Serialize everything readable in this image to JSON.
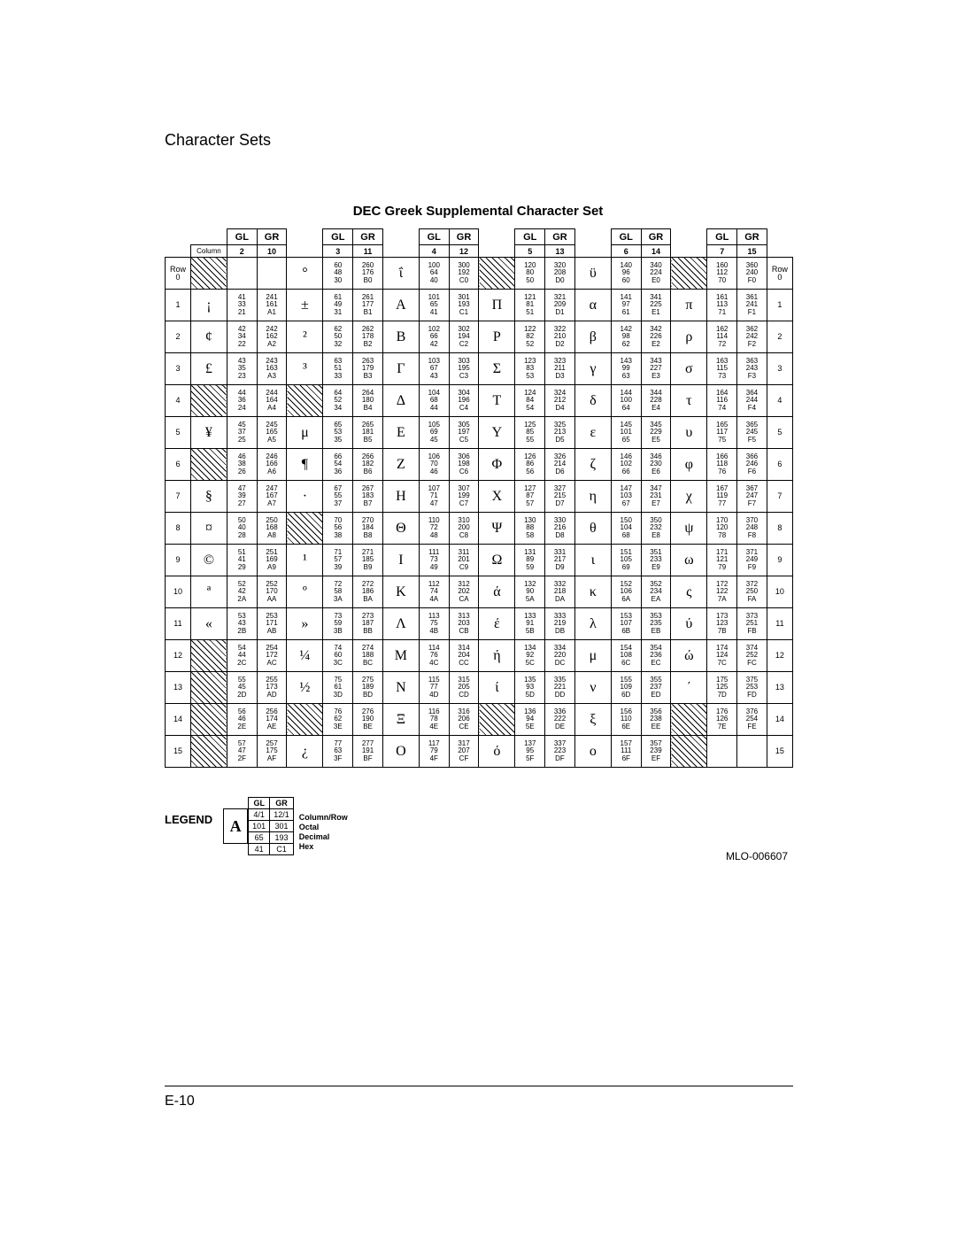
{
  "page": {
    "header": "Character Sets",
    "chart_title": "DEC Greek Supplemental Character Set",
    "page_number": "E-10",
    "mlo": "MLO-006607"
  },
  "headers": {
    "gl": "GL",
    "gr": "GR",
    "column_label": "Column",
    "row_label": "Row"
  },
  "column_numbers": [
    "2",
    "10",
    "3",
    "11",
    "4",
    "12",
    "5",
    "13",
    "6",
    "14",
    "7",
    "15"
  ],
  "legend": {
    "title": "LEGEND",
    "glyph": "A",
    "gl": "GL",
    "gr": "GR",
    "colrow_gl": "4/1",
    "colrow_gr": "12/1",
    "oct_gl": "101",
    "oct_gr": "301",
    "dec_gl": "65",
    "dec_gr": "193",
    "hex_gl": "41",
    "hex_gr": "C1",
    "desc_colrow": "Column/Row",
    "desc_octal": "Octal",
    "desc_decimal": "Decimal",
    "desc_hex": "Hex"
  },
  "rows": [
    {
      "r": "0",
      "cells": [
        {
          "g": "",
          "h": true
        },
        {
          "gl": "",
          "gr": ""
        },
        {
          "g": "°"
        },
        {
          "gl": "60\n48\n30",
          "gr": "260\n176\nB0"
        },
        {
          "g": "ΐ"
        },
        {
          "gl": "100\n64\n40",
          "gr": "300\n192\nC0"
        },
        {
          "g": "",
          "h": true
        },
        {
          "gl": "120\n80\n50",
          "gr": "320\n208\nD0"
        },
        {
          "g": "ϋ"
        },
        {
          "gl": "140\n96\n60",
          "gr": "340\n224\nE0"
        },
        {
          "g": "",
          "h": true
        },
        {
          "gl": "160\n112\n70",
          "gr": "360\n240\nF0"
        }
      ]
    },
    {
      "r": "1",
      "cells": [
        {
          "g": "¡"
        },
        {
          "gl": "41\n33\n21",
          "gr": "241\n161\nA1"
        },
        {
          "g": "±"
        },
        {
          "gl": "61\n49\n31",
          "gr": "261\n177\nB1"
        },
        {
          "g": "Α"
        },
        {
          "gl": "101\n65\n41",
          "gr": "301\n193\nC1"
        },
        {
          "g": "Π"
        },
        {
          "gl": "121\n81\n51",
          "gr": "321\n209\nD1"
        },
        {
          "g": "α"
        },
        {
          "gl": "141\n97\n61",
          "gr": "341\n225\nE1"
        },
        {
          "g": "π"
        },
        {
          "gl": "161\n113\n71",
          "gr": "361\n241\nF1"
        }
      ]
    },
    {
      "r": "2",
      "cells": [
        {
          "g": "¢"
        },
        {
          "gl": "42\n34\n22",
          "gr": "242\n162\nA2"
        },
        {
          "g": "²"
        },
        {
          "gl": "62\n50\n32",
          "gr": "262\n178\nB2"
        },
        {
          "g": "Β"
        },
        {
          "gl": "102\n66\n42",
          "gr": "302\n194\nC2"
        },
        {
          "g": "Ρ"
        },
        {
          "gl": "122\n82\n52",
          "gr": "322\n210\nD2"
        },
        {
          "g": "β"
        },
        {
          "gl": "142\n98\n62",
          "gr": "342\n226\nE2"
        },
        {
          "g": "ρ"
        },
        {
          "gl": "162\n114\n72",
          "gr": "362\n242\nF2"
        }
      ]
    },
    {
      "r": "3",
      "cells": [
        {
          "g": "£"
        },
        {
          "gl": "43\n35\n23",
          "gr": "243\n163\nA3"
        },
        {
          "g": "³"
        },
        {
          "gl": "63\n51\n33",
          "gr": "263\n179\nB3"
        },
        {
          "g": "Γ"
        },
        {
          "gl": "103\n67\n43",
          "gr": "303\n195\nC3"
        },
        {
          "g": "Σ"
        },
        {
          "gl": "123\n83\n53",
          "gr": "323\n211\nD3"
        },
        {
          "g": "γ"
        },
        {
          "gl": "143\n99\n63",
          "gr": "343\n227\nE3"
        },
        {
          "g": "σ"
        },
        {
          "gl": "163\n115\n73",
          "gr": "363\n243\nF3"
        }
      ]
    },
    {
      "r": "4",
      "cells": [
        {
          "g": "",
          "h": true
        },
        {
          "gl": "44\n36\n24",
          "gr": "244\n164\nA4"
        },
        {
          "g": "",
          "h": true
        },
        {
          "gl": "64\n52\n34",
          "gr": "264\n180\nB4"
        },
        {
          "g": "Δ"
        },
        {
          "gl": "104\n68\n44",
          "gr": "304\n196\nC4"
        },
        {
          "g": "Τ"
        },
        {
          "gl": "124\n84\n54",
          "gr": "324\n212\nD4"
        },
        {
          "g": "δ"
        },
        {
          "gl": "144\n100\n64",
          "gr": "344\n228\nE4"
        },
        {
          "g": "τ"
        },
        {
          "gl": "164\n116\n74",
          "gr": "364\n244\nF4"
        }
      ]
    },
    {
      "r": "5",
      "cells": [
        {
          "g": "¥"
        },
        {
          "gl": "45\n37\n25",
          "gr": "245\n165\nA5"
        },
        {
          "g": "μ"
        },
        {
          "gl": "65\n53\n35",
          "gr": "265\n181\nB5"
        },
        {
          "g": "Ε"
        },
        {
          "gl": "105\n69\n45",
          "gr": "305\n197\nC5"
        },
        {
          "g": "Υ"
        },
        {
          "gl": "125\n85\n55",
          "gr": "325\n213\nD5"
        },
        {
          "g": "ε"
        },
        {
          "gl": "145\n101\n65",
          "gr": "345\n229\nE5"
        },
        {
          "g": "υ"
        },
        {
          "gl": "165\n117\n75",
          "gr": "365\n245\nF5"
        }
      ]
    },
    {
      "r": "6",
      "cells": [
        {
          "g": "",
          "h": true
        },
        {
          "gl": "46\n38\n26",
          "gr": "246\n166\nA6"
        },
        {
          "g": "¶"
        },
        {
          "gl": "66\n54\n36",
          "gr": "266\n182\nB6"
        },
        {
          "g": "Ζ"
        },
        {
          "gl": "106\n70\n46",
          "gr": "306\n198\nC6"
        },
        {
          "g": "Φ"
        },
        {
          "gl": "126\n86\n56",
          "gr": "326\n214\nD6"
        },
        {
          "g": "ζ"
        },
        {
          "gl": "146\n102\n66",
          "gr": "346\n230\nE6"
        },
        {
          "g": "φ"
        },
        {
          "gl": "166\n118\n76",
          "gr": "366\n246\nF6"
        }
      ]
    },
    {
      "r": "7",
      "cells": [
        {
          "g": "§"
        },
        {
          "gl": "47\n39\n27",
          "gr": "247\n167\nA7"
        },
        {
          "g": "·"
        },
        {
          "gl": "67\n55\n37",
          "gr": "267\n183\nB7"
        },
        {
          "g": "Η"
        },
        {
          "gl": "107\n71\n47",
          "gr": "307\n199\nC7"
        },
        {
          "g": "Χ"
        },
        {
          "gl": "127\n87\n57",
          "gr": "327\n215\nD7"
        },
        {
          "g": "η"
        },
        {
          "gl": "147\n103\n67",
          "gr": "347\n231\nE7"
        },
        {
          "g": "χ"
        },
        {
          "gl": "167\n119\n77",
          "gr": "367\n247\nF7"
        }
      ]
    },
    {
      "r": "8",
      "cells": [
        {
          "g": "¤"
        },
        {
          "gl": "50\n40\n28",
          "gr": "250\n168\nA8"
        },
        {
          "g": "",
          "h": true
        },
        {
          "gl": "70\n56\n38",
          "gr": "270\n184\nB8"
        },
        {
          "g": "Θ"
        },
        {
          "gl": "110\n72\n48",
          "gr": "310\n200\nC8"
        },
        {
          "g": "Ψ"
        },
        {
          "gl": "130\n88\n58",
          "gr": "330\n216\nD8"
        },
        {
          "g": "θ"
        },
        {
          "gl": "150\n104\n68",
          "gr": "350\n232\nE8"
        },
        {
          "g": "ψ"
        },
        {
          "gl": "170\n120\n78",
          "gr": "370\n248\nF8"
        }
      ]
    },
    {
      "r": "9",
      "cells": [
        {
          "g": "©"
        },
        {
          "gl": "51\n41\n29",
          "gr": "251\n169\nA9"
        },
        {
          "g": "¹"
        },
        {
          "gl": "71\n57\n39",
          "gr": "271\n185\nB9"
        },
        {
          "g": "Ι"
        },
        {
          "gl": "111\n73\n49",
          "gr": "311\n201\nC9"
        },
        {
          "g": "Ω"
        },
        {
          "gl": "131\n89\n59",
          "gr": "331\n217\nD9"
        },
        {
          "g": "ι"
        },
        {
          "gl": "151\n105\n69",
          "gr": "351\n233\nE9"
        },
        {
          "g": "ω"
        },
        {
          "gl": "171\n121\n79",
          "gr": "371\n249\nF9"
        }
      ]
    },
    {
      "r": "10",
      "cells": [
        {
          "g": "ª"
        },
        {
          "gl": "52\n42\n2A",
          "gr": "252\n170\nAA"
        },
        {
          "g": "º"
        },
        {
          "gl": "72\n58\n3A",
          "gr": "272\n186\nBA"
        },
        {
          "g": "Κ"
        },
        {
          "gl": "112\n74\n4A",
          "gr": "312\n202\nCA"
        },
        {
          "g": "ά"
        },
        {
          "gl": "132\n90\n5A",
          "gr": "332\n218\nDA"
        },
        {
          "g": "κ"
        },
        {
          "gl": "152\n106\n6A",
          "gr": "352\n234\nEA"
        },
        {
          "g": "ς"
        },
        {
          "gl": "172\n122\n7A",
          "gr": "372\n250\nFA"
        }
      ]
    },
    {
      "r": "11",
      "cells": [
        {
          "g": "«"
        },
        {
          "gl": "53\n43\n2B",
          "gr": "253\n171\nAB"
        },
        {
          "g": "»"
        },
        {
          "gl": "73\n59\n3B",
          "gr": "273\n187\nBB"
        },
        {
          "g": "Λ"
        },
        {
          "gl": "113\n75\n4B",
          "gr": "313\n203\nCB"
        },
        {
          "g": "έ"
        },
        {
          "gl": "133\n91\n5B",
          "gr": "333\n219\nDB"
        },
        {
          "g": "λ"
        },
        {
          "gl": "153\n107\n6B",
          "gr": "353\n235\nEB"
        },
        {
          "g": "ύ"
        },
        {
          "gl": "173\n123\n7B",
          "gr": "373\n251\nFB"
        }
      ]
    },
    {
      "r": "12",
      "cells": [
        {
          "g": "",
          "h": true
        },
        {
          "gl": "54\n44\n2C",
          "gr": "254\n172\nAC"
        },
        {
          "g": "¼"
        },
        {
          "gl": "74\n60\n3C",
          "gr": "274\n188\nBC"
        },
        {
          "g": "Μ"
        },
        {
          "gl": "114\n76\n4C",
          "gr": "314\n204\nCC"
        },
        {
          "g": "ή"
        },
        {
          "gl": "134\n92\n5C",
          "gr": "334\n220\nDC"
        },
        {
          "g": "μ"
        },
        {
          "gl": "154\n108\n6C",
          "gr": "354\n236\nEC"
        },
        {
          "g": "ώ"
        },
        {
          "gl": "174\n124\n7C",
          "gr": "374\n252\nFC"
        }
      ]
    },
    {
      "r": "13",
      "cells": [
        {
          "g": "",
          "h": true
        },
        {
          "gl": "55\n45\n2D",
          "gr": "255\n173\nAD"
        },
        {
          "g": "½"
        },
        {
          "gl": "75\n61\n3D",
          "gr": "275\n189\nBD"
        },
        {
          "g": "Ν"
        },
        {
          "gl": "115\n77\n4D",
          "gr": "315\n205\nCD"
        },
        {
          "g": "ί"
        },
        {
          "gl": "135\n93\n5D",
          "gr": "335\n221\nDD"
        },
        {
          "g": "ν"
        },
        {
          "gl": "155\n109\n6D",
          "gr": "355\n237\nED"
        },
        {
          "g": "΄"
        },
        {
          "gl": "175\n125\n7D",
          "gr": "375\n253\nFD"
        }
      ]
    },
    {
      "r": "14",
      "cells": [
        {
          "g": "",
          "h": true
        },
        {
          "gl": "56\n46\n2E",
          "gr": "256\n174\nAE"
        },
        {
          "g": "",
          "h": true
        },
        {
          "gl": "76\n62\n3E",
          "gr": "276\n190\nBE"
        },
        {
          "g": "Ξ"
        },
        {
          "gl": "116\n78\n4E",
          "gr": "316\n206\nCE"
        },
        {
          "g": "",
          "h": true
        },
        {
          "gl": "136\n94\n5E",
          "gr": "336\n222\nDE"
        },
        {
          "g": "ξ"
        },
        {
          "gl": "156\n110\n6E",
          "gr": "356\n238\nEE"
        },
        {
          "g": "",
          "h": true
        },
        {
          "gl": "176\n126\n7E",
          "gr": "376\n254\nFE"
        }
      ]
    },
    {
      "r": "15",
      "cells": [
        {
          "g": "",
          "h": true
        },
        {
          "gl": "57\n47\n2F",
          "gr": "257\n175\nAF"
        },
        {
          "g": "¿"
        },
        {
          "gl": "77\n63\n3F",
          "gr": "277\n191\nBF"
        },
        {
          "g": "Ο"
        },
        {
          "gl": "117\n79\n4F",
          "gr": "317\n207\nCF"
        },
        {
          "g": "ό"
        },
        {
          "gl": "137\n95\n5F",
          "gr": "337\n223\nDF"
        },
        {
          "g": "ο"
        },
        {
          "gl": "157\n111\n6F",
          "gr": "357\n239\nEF"
        },
        {
          "g": "",
          "h": true
        },
        {
          "gl": "",
          "gr": ""
        }
      ]
    }
  ]
}
